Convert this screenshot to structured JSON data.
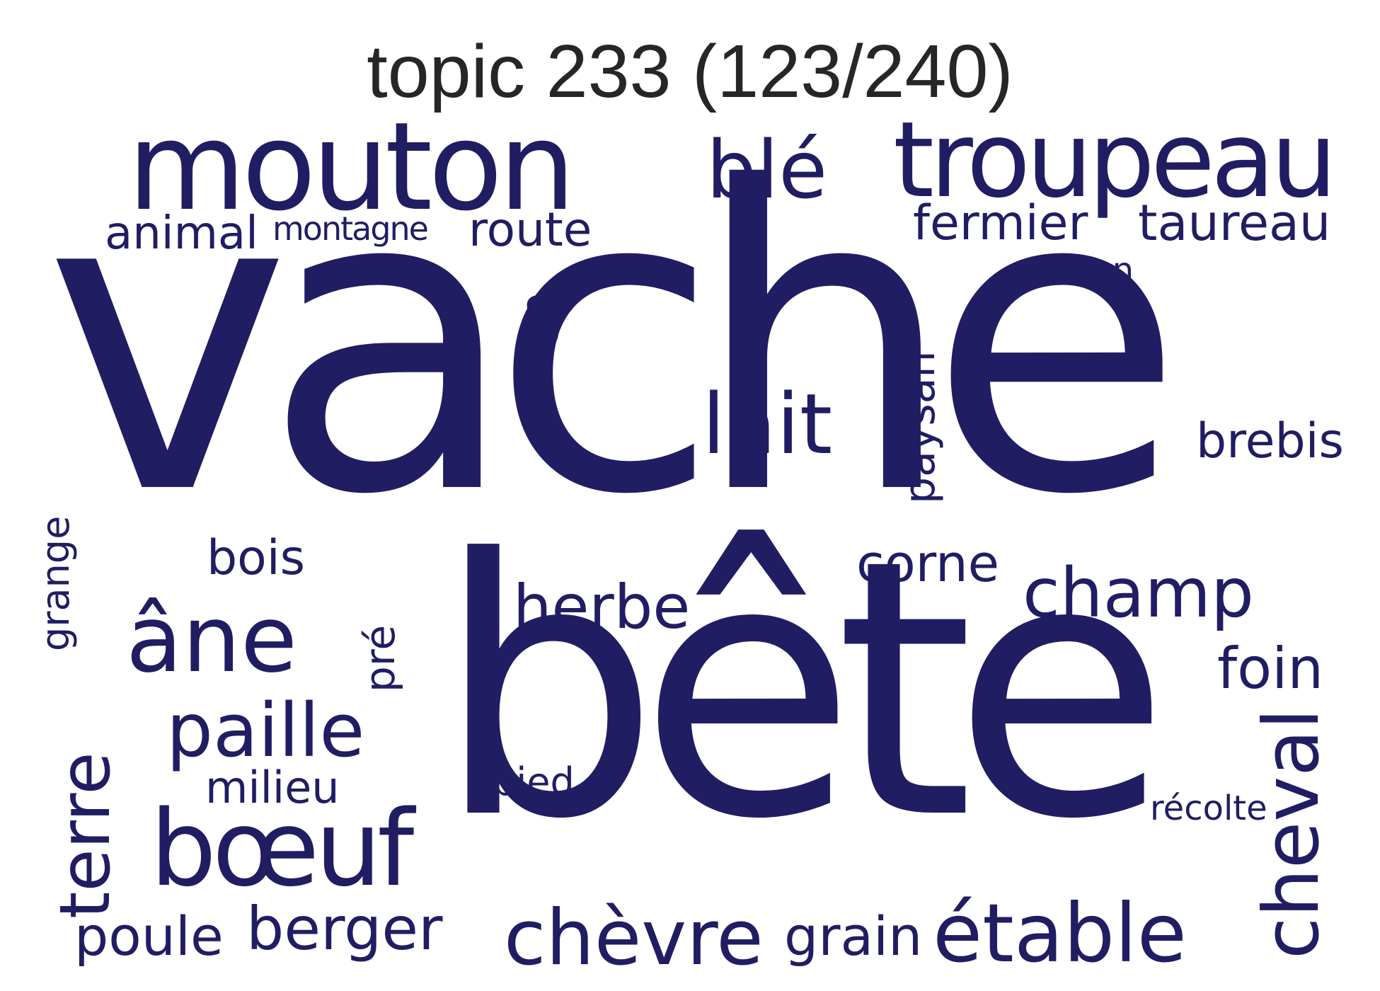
{
  "title": "topic 233 (123/240)",
  "word_color": "#211d63",
  "title_color": "#262626",
  "words": {
    "vache": "vache",
    "bete": "bête",
    "mouton": "mouton",
    "troupeau": "troupeau",
    "ble": "blé",
    "animal": "animal",
    "montagne": "montagne",
    "route": "route",
    "fermier": "fermier",
    "taureau": "taureau",
    "chien": "chien",
    "village": "village",
    "lait": "lait",
    "paysan": "paysan",
    "brebis": "brebis",
    "grange": "grange",
    "bois": "bois",
    "corne": "corne",
    "champ": "champ",
    "ane": "âne",
    "herbe": "herbe",
    "pre": "pré",
    "foin": "foin",
    "paille": "paille",
    "terre": "terre",
    "milieu": "milieu",
    "pied": "pied",
    "cheval": "cheval",
    "recolte": "récolte",
    "boeuf": "bœuf",
    "poule": "poule",
    "berger": "berger",
    "chevre": "chèvre",
    "grain": "grain",
    "etable": "étable"
  }
}
